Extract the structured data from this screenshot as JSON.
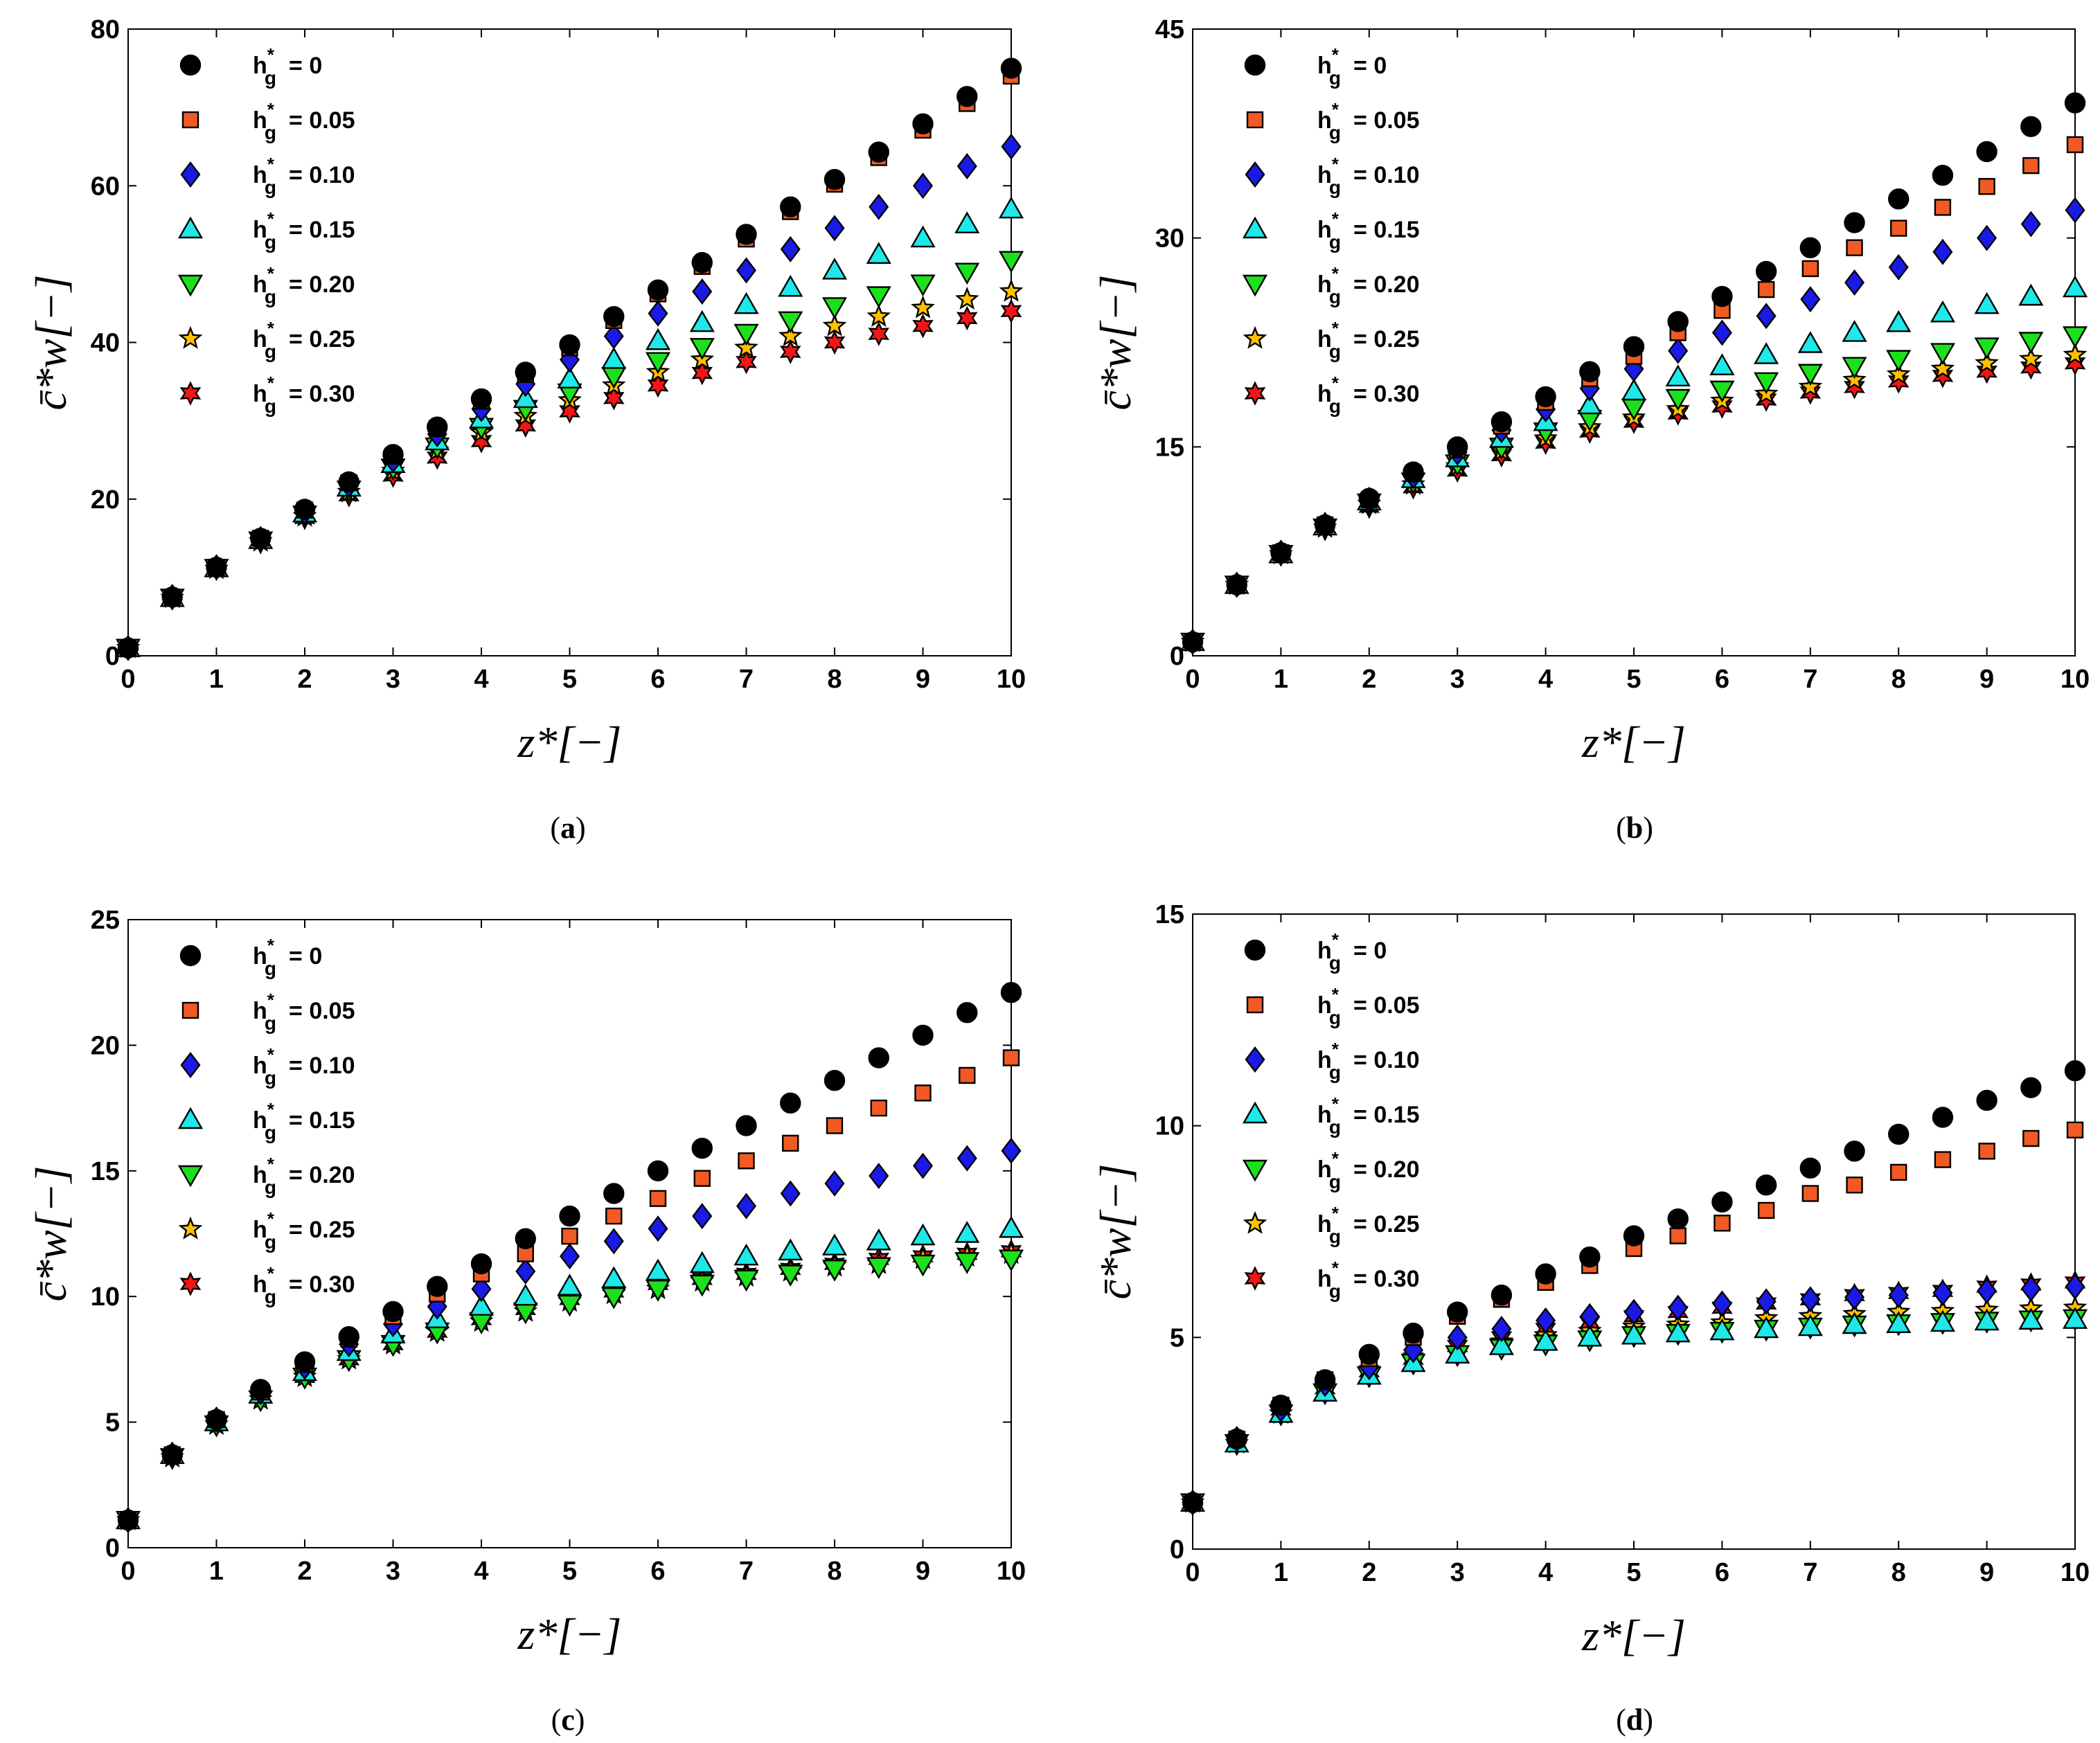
{
  "chart_data": [
    {
      "type": "scatter",
      "panel": "a",
      "xlabel": "z*[−]",
      "ylabel": "c̄*w[−]",
      "xlim": [
        0,
        10
      ],
      "ylim": [
        0,
        80
      ],
      "xticks": [
        0,
        1,
        2,
        3,
        4,
        5,
        6,
        7,
        8,
        9,
        10
      ],
      "yticks": [
        0,
        20,
        40,
        60,
        80
      ],
      "x": [
        0,
        0.5,
        1,
        1.5,
        2,
        2.5,
        3,
        3.5,
        4,
        4.5,
        5,
        5.5,
        6,
        6.5,
        7,
        7.5,
        8,
        8.5,
        9,
        9.5,
        10
      ],
      "series": [
        {
          "name": "h*g = 0",
          "label": "= 0",
          "values": [
            1,
            7.5,
            11.3,
            15,
            18.7,
            22.2,
            25.7,
            29.2,
            32.8,
            36.2,
            39.7,
            43.3,
            46.7,
            50.2,
            53.8,
            57.3,
            60.8,
            64.3,
            67.9,
            71.4,
            75
          ]
        },
        {
          "name": "h*g = 0.05",
          "label": "= 0.05",
          "values": [
            1,
            7.5,
            11.3,
            15,
            18.6,
            22.1,
            25.5,
            29,
            32.5,
            35.9,
            39.3,
            42.8,
            46.2,
            49.7,
            53.2,
            56.7,
            60.2,
            63.6,
            67.1,
            70.5,
            74
          ]
        },
        {
          "name": "h*g = 0.10",
          "label": "= 0.10",
          "values": [
            1,
            7.5,
            11.3,
            14.9,
            18.4,
            21.8,
            25,
            28.3,
            31.5,
            34.7,
            37.8,
            40.8,
            43.7,
            46.5,
            49.2,
            51.9,
            54.6,
            57.3,
            60,
            62.5,
            65
          ]
        },
        {
          "name": "h*g = 0.15",
          "label": "= 0.15",
          "values": [
            1,
            7.4,
            11.2,
            14.8,
            18.2,
            21.5,
            24.5,
            27.4,
            30.2,
            32.8,
            35.3,
            37.8,
            40.2,
            42.5,
            44.8,
            47,
            49.2,
            51.2,
            53.3,
            55.1,
            57
          ]
        },
        {
          "name": "h*g = 0.20",
          "label": "= 0.20",
          "values": [
            1,
            7.4,
            11.2,
            14.7,
            18,
            21.2,
            24,
            26.7,
            29.2,
            31.5,
            33.6,
            35.7,
            37.6,
            39.4,
            41.2,
            42.8,
            44.6,
            46,
            47.5,
            49,
            50.5
          ]
        },
        {
          "name": "h*g = 0.25",
          "label": "= 0.25",
          "values": [
            1,
            7.4,
            11.1,
            14.6,
            17.8,
            20.9,
            23.6,
            26.2,
            28.5,
            30.6,
            32.6,
            34.5,
            36.2,
            37.8,
            39.3,
            40.8,
            42.1,
            43.3,
            44.4,
            45.5,
            46.5
          ]
        },
        {
          "name": "h*g = 0.30",
          "label": "= 0.30",
          "values": [
            1,
            7.4,
            11.1,
            14.5,
            17.6,
            20.5,
            23,
            25.3,
            27.4,
            29.4,
            31.2,
            32.9,
            34.5,
            36.1,
            37.5,
            38.8,
            40,
            41.1,
            42.1,
            43.1,
            44
          ]
        }
      ],
      "caption": "(a)"
    },
    {
      "type": "scatter",
      "panel": "b",
      "xlabel": "z*[−]",
      "ylabel": "c̄*w[−]",
      "xlim": [
        0,
        10
      ],
      "ylim": [
        0,
        45
      ],
      "xticks": [
        0,
        1,
        2,
        3,
        4,
        5,
        6,
        7,
        8,
        9,
        10
      ],
      "yticks": [
        0,
        15,
        30,
        45
      ],
      "x": [
        0,
        0.5,
        1,
        1.5,
        2,
        2.5,
        3,
        3.5,
        4,
        4.5,
        5,
        5.5,
        6,
        6.5,
        7,
        7.5,
        8,
        8.5,
        9,
        9.5,
        10
      ],
      "series": [
        {
          "name": "h*g = 0",
          "label": "= 0",
          "values": [
            1,
            5.1,
            7.4,
            9.4,
            11.3,
            13.2,
            15,
            16.8,
            18.6,
            20.4,
            22.2,
            24,
            25.8,
            27.6,
            29.3,
            31.1,
            32.8,
            34.5,
            36.2,
            38,
            39.7
          ]
        },
        {
          "name": "h*g = 0.05",
          "label": "= 0.05",
          "values": [
            1,
            5.1,
            7.4,
            9.4,
            11.2,
            13.1,
            14.8,
            16.5,
            18.2,
            19.9,
            21.5,
            23.2,
            24.8,
            26.3,
            27.8,
            29.3,
            30.7,
            32.2,
            33.7,
            35.2,
            36.7
          ]
        },
        {
          "name": "h*g = 0.10",
          "label": "= 0.10",
          "values": [
            1,
            5.1,
            7.4,
            9.4,
            11.2,
            12.9,
            14.6,
            16.2,
            17.7,
            19.2,
            20.6,
            21.9,
            23.2,
            24.4,
            25.6,
            26.8,
            27.9,
            29,
            30,
            31,
            32
          ]
        },
        {
          "name": "h*g = 0.15",
          "label": "= 0.15",
          "values": [
            1,
            5.1,
            7.3,
            9.3,
            11.1,
            12.7,
            14.2,
            15.6,
            16.8,
            18,
            19,
            20,
            20.8,
            21.6,
            22.4,
            23.2,
            23.9,
            24.6,
            25.2,
            25.8,
            26.4
          ]
        },
        {
          "name": "h*g = 0.20",
          "label": "= 0.20",
          "values": [
            1,
            5.1,
            7.3,
            9.2,
            11,
            12.5,
            13.8,
            15,
            16.1,
            17,
            17.8,
            18.5,
            19.1,
            19.7,
            20.3,
            20.8,
            21.3,
            21.8,
            22.2,
            22.6,
            23
          ]
        },
        {
          "name": "h*g = 0.25",
          "label": "= 0.25",
          "values": [
            1,
            5.1,
            7.3,
            9.2,
            10.9,
            12.3,
            13.6,
            14.7,
            15.6,
            16.4,
            17.1,
            17.7,
            18.3,
            18.8,
            19.3,
            19.8,
            20.2,
            20.6,
            21,
            21.3,
            21.6
          ]
        },
        {
          "name": "h*g = 0.30",
          "label": "= 0.30",
          "values": [
            1,
            5.1,
            7.3,
            9.1,
            10.7,
            12.1,
            13.3,
            14.4,
            15.3,
            16.1,
            16.8,
            17.4,
            17.9,
            18.4,
            18.9,
            19.3,
            19.7,
            20.1,
            20.4,
            20.7,
            21
          ]
        }
      ],
      "caption": "(b)"
    },
    {
      "type": "scatter",
      "panel": "c",
      "xlabel": "z*[−]",
      "ylabel": "c̄*w[−]",
      "xlim": [
        0,
        10
      ],
      "ylim": [
        0,
        25
      ],
      "xticks": [
        0,
        1,
        2,
        3,
        4,
        5,
        6,
        7,
        8,
        9,
        10
      ],
      "yticks": [
        0,
        5,
        10,
        15,
        20,
        25
      ],
      "x": [
        0,
        0.5,
        1,
        1.5,
        2,
        2.5,
        3,
        3.5,
        4,
        4.5,
        5,
        5.5,
        6,
        6.5,
        7,
        7.5,
        8,
        8.5,
        9,
        9.5,
        10
      ],
      "series": [
        {
          "name": "h*g = 0",
          "label": "= 0",
          "values": [
            1.1,
            3.7,
            5.1,
            6.3,
            7.4,
            8.4,
            9.4,
            10.4,
            11.3,
            12.3,
            13.2,
            14.1,
            15,
            15.9,
            16.8,
            17.7,
            18.6,
            19.5,
            20.4,
            21.3,
            22.1
          ]
        },
        {
          "name": "h*g = 0.05",
          "label": "= 0.05",
          "values": [
            1.1,
            3.7,
            5.1,
            6.2,
            7.3,
            8.3,
            9.2,
            10.1,
            10.9,
            11.7,
            12.4,
            13.2,
            13.9,
            14.7,
            15.4,
            16.1,
            16.8,
            17.5,
            18.1,
            18.8,
            19.5
          ]
        },
        {
          "name": "h*g = 0.10",
          "label": "= 0.10",
          "values": [
            1.1,
            3.7,
            5.1,
            6.2,
            7.2,
            8.1,
            8.9,
            9.6,
            10.3,
            11,
            11.6,
            12.2,
            12.7,
            13.2,
            13.6,
            14.1,
            14.5,
            14.8,
            15.2,
            15.5,
            15.8
          ]
        },
        {
          "name": "h*g = 0.15",
          "label": "= 0.15",
          "values": [
            1.1,
            3.7,
            5,
            6.1,
            7,
            7.8,
            8.5,
            9.1,
            9.6,
            10,
            10.4,
            10.7,
            11,
            11.3,
            11.6,
            11.8,
            12,
            12.2,
            12.4,
            12.5,
            12.7
          ]
        },
        {
          "name": "h*g = 0.20",
          "label": "= 0.20",
          "values": [
            1.1,
            3.6,
            4.9,
            5.9,
            6.8,
            7.5,
            8.1,
            8.6,
            9,
            9.4,
            9.7,
            10,
            10.3,
            10.5,
            10.7,
            10.9,
            11.1,
            11.2,
            11.3,
            11.4,
            11.5
          ]
        },
        {
          "name": "h*g = 0.25",
          "label": "= 0.25",
          "values": [
            1.1,
            3.6,
            4.9,
            5.9,
            6.8,
            7.5,
            8.1,
            8.6,
            9,
            9.4,
            9.8,
            10.1,
            10.3,
            10.6,
            10.8,
            11,
            11.2,
            11.3,
            11.5,
            11.6,
            11.7
          ]
        },
        {
          "name": "h*g = 0.30",
          "label": "= 0.30",
          "values": [
            1.1,
            3.6,
            4.9,
            6,
            6.8,
            7.5,
            8.1,
            8.6,
            9.1,
            9.5,
            9.9,
            10.2,
            10.5,
            10.7,
            10.9,
            11.1,
            11.3,
            11.5,
            11.6,
            11.7,
            11.8
          ]
        }
      ],
      "caption": "(c)"
    },
    {
      "type": "scatter",
      "panel": "d",
      "xlabel": "z*[−]",
      "ylabel": "c̄*w[−]",
      "xlim": [
        0,
        10
      ],
      "ylim": [
        0,
        15
      ],
      "xticks": [
        0,
        1,
        2,
        3,
        4,
        5,
        6,
        7,
        8,
        9,
        10
      ],
      "yticks": [
        0,
        5,
        10,
        15
      ],
      "x": [
        0,
        0.5,
        1,
        1.5,
        2,
        2.5,
        3,
        3.5,
        4,
        4.5,
        5,
        5.5,
        6,
        6.5,
        7,
        7.5,
        8,
        8.5,
        9,
        9.5,
        10
      ],
      "series": [
        {
          "name": "h*g = 0",
          "label": "= 0",
          "values": [
            1.1,
            2.6,
            3.4,
            4,
            4.6,
            5.1,
            5.6,
            6,
            6.5,
            6.9,
            7.4,
            7.8,
            8.2,
            8.6,
            9,
            9.4,
            9.8,
            10.2,
            10.6,
            10.9,
            11.3
          ]
        },
        {
          "name": "h*g = 0.05",
          "label": "= 0.05",
          "values": [
            1.1,
            2.6,
            3.4,
            4,
            4.5,
            5,
            5.5,
            5.9,
            6.3,
            6.7,
            7.1,
            7.4,
            7.7,
            8,
            8.4,
            8.6,
            8.9,
            9.2,
            9.4,
            9.7,
            9.9
          ]
        },
        {
          "name": "h*g = 0.10",
          "label": "= 0.10",
          "values": [
            1.1,
            2.6,
            3.3,
            3.9,
            4.3,
            4.7,
            5,
            5.2,
            5.4,
            5.5,
            5.6,
            5.7,
            5.8,
            5.85,
            5.9,
            5.95,
            6,
            6.05,
            6.1,
            6.15,
            6.2
          ]
        },
        {
          "name": "h*g = 0.15",
          "label": "= 0.15",
          "values": [
            1.1,
            2.5,
            3.2,
            3.7,
            4.1,
            4.4,
            4.6,
            4.8,
            4.9,
            5,
            5.05,
            5.1,
            5.15,
            5.2,
            5.25,
            5.3,
            5.32,
            5.35,
            5.38,
            5.4,
            5.42
          ]
        },
        {
          "name": "h*g = 0.20",
          "label": "= 0.20",
          "values": [
            1.1,
            2.5,
            3.2,
            3.7,
            4.1,
            4.4,
            4.6,
            4.75,
            4.85,
            4.95,
            5.05,
            5.1,
            5.15,
            5.2,
            5.25,
            5.3,
            5.33,
            5.36,
            5.39,
            5.42,
            5.45
          ]
        },
        {
          "name": "h*g = 0.25",
          "label": "= 0.25",
          "values": [
            1.1,
            2.5,
            3.2,
            3.8,
            4.2,
            4.5,
            4.7,
            4.9,
            5.05,
            5.15,
            5.25,
            5.3,
            5.35,
            5.45,
            5.5,
            5.55,
            5.6,
            5.62,
            5.65,
            5.68,
            5.7
          ]
        },
        {
          "name": "h*g = 0.30",
          "label": "= 0.30",
          "values": [
            1.1,
            2.5,
            3.3,
            3.8,
            4.2,
            4.5,
            4.8,
            5,
            5.2,
            5.35,
            5.5,
            5.6,
            5.7,
            5.8,
            5.9,
            6,
            6.05,
            6.1,
            6.2,
            6.25,
            6.3
          ]
        }
      ],
      "caption": "(d)"
    }
  ],
  "legend_prefix": {
    "base": "h",
    "sup": "*",
    "sub": "g"
  },
  "styles": [
    {
      "marker": "circle",
      "fill": "#000000"
    },
    {
      "marker": "square",
      "fill": "#f15a22"
    },
    {
      "marker": "diamond",
      "fill": "#1a1ae6"
    },
    {
      "marker": "triangle-up",
      "fill": "#1ee8e8"
    },
    {
      "marker": "triangle-down",
      "fill": "#1de01d"
    },
    {
      "marker": "star5",
      "fill": "#ffc000"
    },
    {
      "marker": "star6",
      "fill": "#f01616"
    }
  ]
}
